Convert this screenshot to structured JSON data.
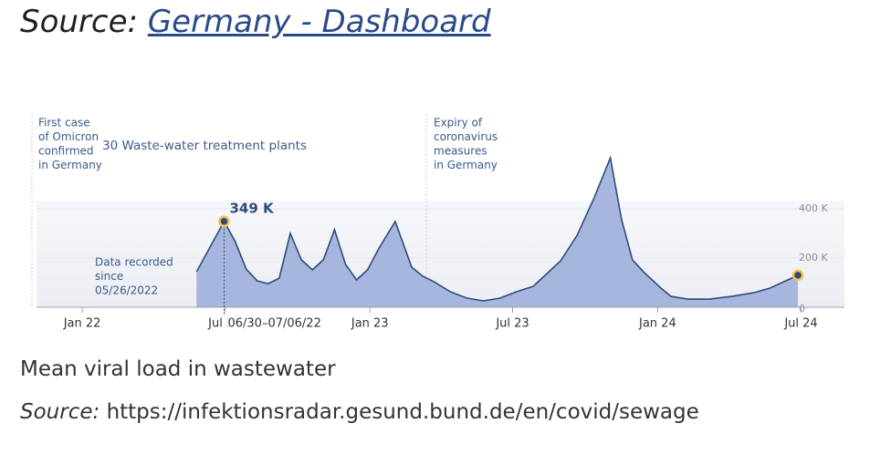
{
  "header": {
    "prefix": "Source:",
    "link": "Germany - Dashboard"
  },
  "chart_data": {
    "type": "area",
    "subtitle": "30 Waste-water treatment plants",
    "annotations": [
      {
        "lines": [
          "First case",
          "of Omicron",
          "confirmed",
          "in Germany"
        ]
      },
      {
        "lines": [
          "Expiry of",
          "coronavirus",
          "measures",
          "in Germany"
        ]
      },
      {
        "lines": [
          "Data recorded",
          "since",
          "05/26/2022"
        ]
      }
    ],
    "hover_label": "06/30–07/06/22",
    "color": "#a7b6dc",
    "line_color": "#2d4b7d",
    "x": [
      "2022-05-26",
      "2022-06-30",
      "2022-07-14",
      "2022-07-28",
      "2022-08-11",
      "2022-08-25",
      "2022-09-08",
      "2022-09-22",
      "2022-10-06",
      "2022-10-20",
      "2022-11-03",
      "2022-11-17",
      "2022-12-01",
      "2022-12-15",
      "2022-12-29",
      "2023-01-12",
      "2023-02-02",
      "2023-02-23",
      "2023-03-09",
      "2023-03-23",
      "2023-04-13",
      "2023-05-04",
      "2023-05-25",
      "2023-06-15",
      "2023-07-06",
      "2023-07-27",
      "2023-08-10",
      "2023-08-31",
      "2023-09-21",
      "2023-10-12",
      "2023-11-02",
      "2023-11-16",
      "2023-11-30",
      "2023-12-14",
      "2024-01-04",
      "2024-01-18",
      "2024-02-08",
      "2024-03-07",
      "2024-04-04",
      "2024-05-02",
      "2024-05-23",
      "2024-06-27"
    ],
    "values": [
      144000,
      349000,
      267000,
      155000,
      107000,
      96000,
      118000,
      300000,
      193000,
      152000,
      193000,
      315000,
      174000,
      111000,
      152000,
      237000,
      348000,
      163000,
      126000,
      104000,
      63000,
      37000,
      26000,
      37000,
      63000,
      85000,
      126000,
      189000,
      293000,
      441000,
      607000,
      359000,
      193000,
      144000,
      81000,
      44000,
      33000,
      33000,
      44000,
      59000,
      78000,
      130000
    ],
    "value_labels": [
      null,
      "349 K",
      null,
      null,
      null,
      null,
      null,
      null,
      null,
      null,
      null,
      null,
      null,
      null,
      null,
      null,
      null,
      null,
      null,
      null,
      null,
      null,
      null,
      null,
      null,
      null,
      null,
      null,
      null,
      null,
      null,
      null,
      null,
      null,
      null,
      null,
      null,
      null,
      null,
      null,
      null,
      null
    ],
    "xlim": [
      "2021-11-04",
      "2024-08-25"
    ],
    "xticks": [
      {
        "value": "2022-01-01",
        "label": "Jan 22"
      },
      {
        "value": "2022-07-01",
        "label": "Jul 22"
      },
      {
        "value": "2023-01-01",
        "label": "Jan 23"
      },
      {
        "value": "2023-07-01",
        "label": "Jul 23"
      },
      {
        "value": "2024-01-01",
        "label": "Jan 24"
      },
      {
        "value": "2024-07-01",
        "label": "Jul 24"
      }
    ],
    "ylim": [
      0,
      650000
    ],
    "yticks": [
      0,
      {
        "value": 200000,
        "label": "200 K"
      },
      {
        "value": 400000,
        "label": "400 K"
      }
    ],
    "grid": true
  },
  "caption": "Mean viral load in wastewater",
  "source": {
    "prefix": "Source:",
    "url": "https://infektionsradar.gesund.bund.de/en/covid/sewage"
  }
}
